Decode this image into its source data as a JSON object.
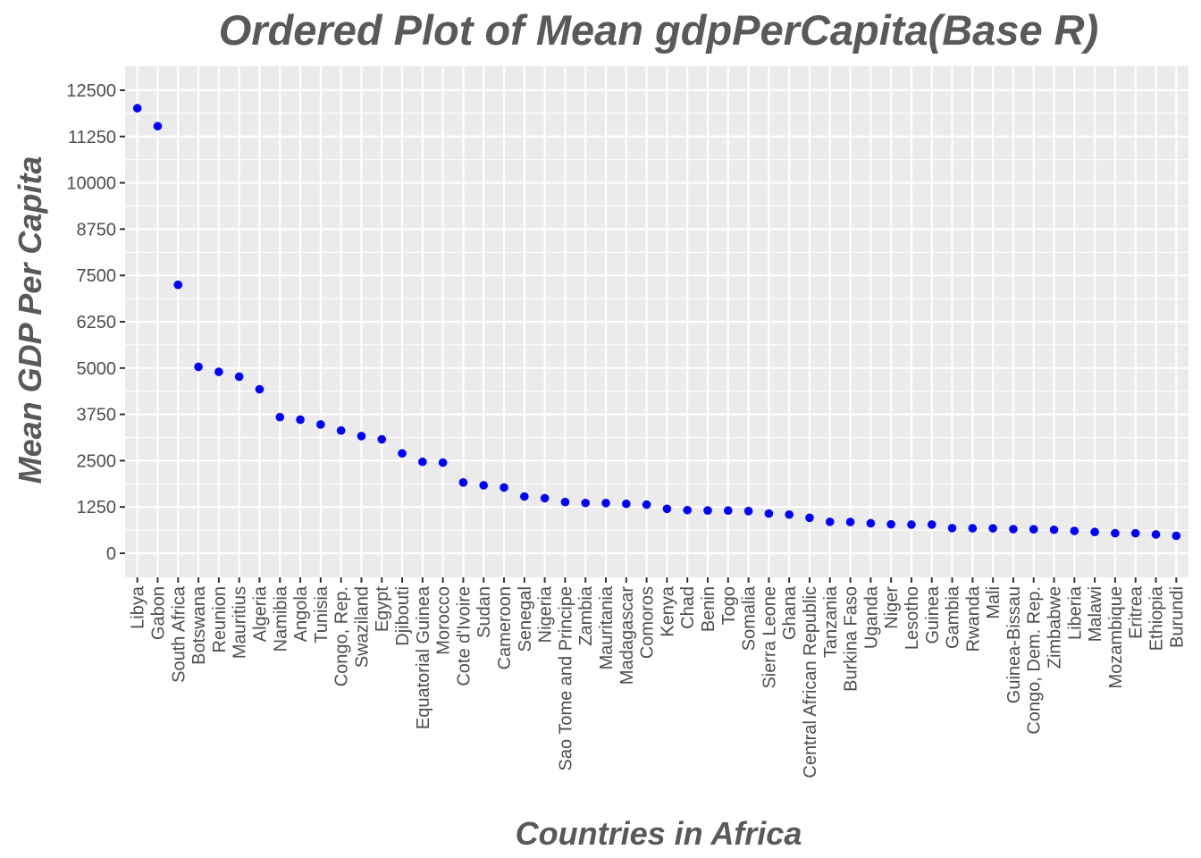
{
  "chart_data": {
    "type": "scatter",
    "title": "Ordered Plot of Mean gdpPerCapita(Base R)",
    "xlabel": "Countries in Africa",
    "ylabel": "Mean GDP Per Capita",
    "ylim": [
      -650,
      13150
    ],
    "yticks": [
      0,
      1250,
      2500,
      3750,
      5000,
      6250,
      7500,
      8750,
      10000,
      11250,
      12500
    ],
    "grid": true,
    "point_color": "#0000ff",
    "panel_color": "#ebebeb",
    "gridline_color": "#ffffff",
    "categories": [
      "Libya",
      "Gabon",
      "South Africa",
      "Botswana",
      "Reunion",
      "Mauritius",
      "Algeria",
      "Namibia",
      "Angola",
      "Tunisia",
      "Congo, Rep.",
      "Swaziland",
      "Egypt",
      "Djibouti",
      "Equatorial Guinea",
      "Morocco",
      "Cote d'Ivoire",
      "Sudan",
      "Cameroon",
      "Senegal",
      "Nigeria",
      "Sao Tome and Principe",
      "Zambia",
      "Mauritania",
      "Madagascar",
      "Comoros",
      "Kenya",
      "Chad",
      "Benin",
      "Togo",
      "Somalia",
      "Sierra Leone",
      "Ghana",
      "Central African Republic",
      "Tanzania",
      "Burkina Faso",
      "Uganda",
      "Niger",
      "Lesotho",
      "Guinea",
      "Gambia",
      "Rwanda",
      "Mali",
      "Guinea-Bissau",
      "Congo, Dem. Rep.",
      "Zimbabwe",
      "Liberia",
      "Malawi",
      "Mozambique",
      "Eritrea",
      "Ethiopia",
      "Burundi"
    ],
    "values": [
      12014,
      11530,
      7247,
      5032,
      4898,
      4768,
      4426,
      3675,
      3607,
      3477,
      3313,
      3163,
      3075,
      2697,
      2469,
      2448,
      1912,
      1836,
      1775,
      1533,
      1488,
      1383,
      1358,
      1356,
      1335,
      1314,
      1200,
      1165,
      1155,
      1154,
      1140,
      1072,
      1045,
      959,
      849,
      844,
      810,
      782,
      774,
      776,
      680,
      675,
      673,
      652,
      648,
      635,
      604,
      575,
      542,
      541,
      509,
      472
    ]
  }
}
